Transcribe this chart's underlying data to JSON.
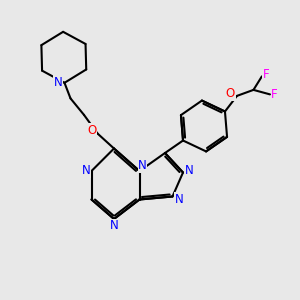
{
  "bg_color": "#e8e8e8",
  "bond_color": "#000000",
  "N_color": "#0000ff",
  "O_color": "#ff0000",
  "F_color": "#ff00ff",
  "bond_width": 1.5,
  "figsize": [
    3.0,
    3.0
  ],
  "dpi": 100,
  "xlim": [
    0,
    10
  ],
  "ylim": [
    0,
    10
  ]
}
